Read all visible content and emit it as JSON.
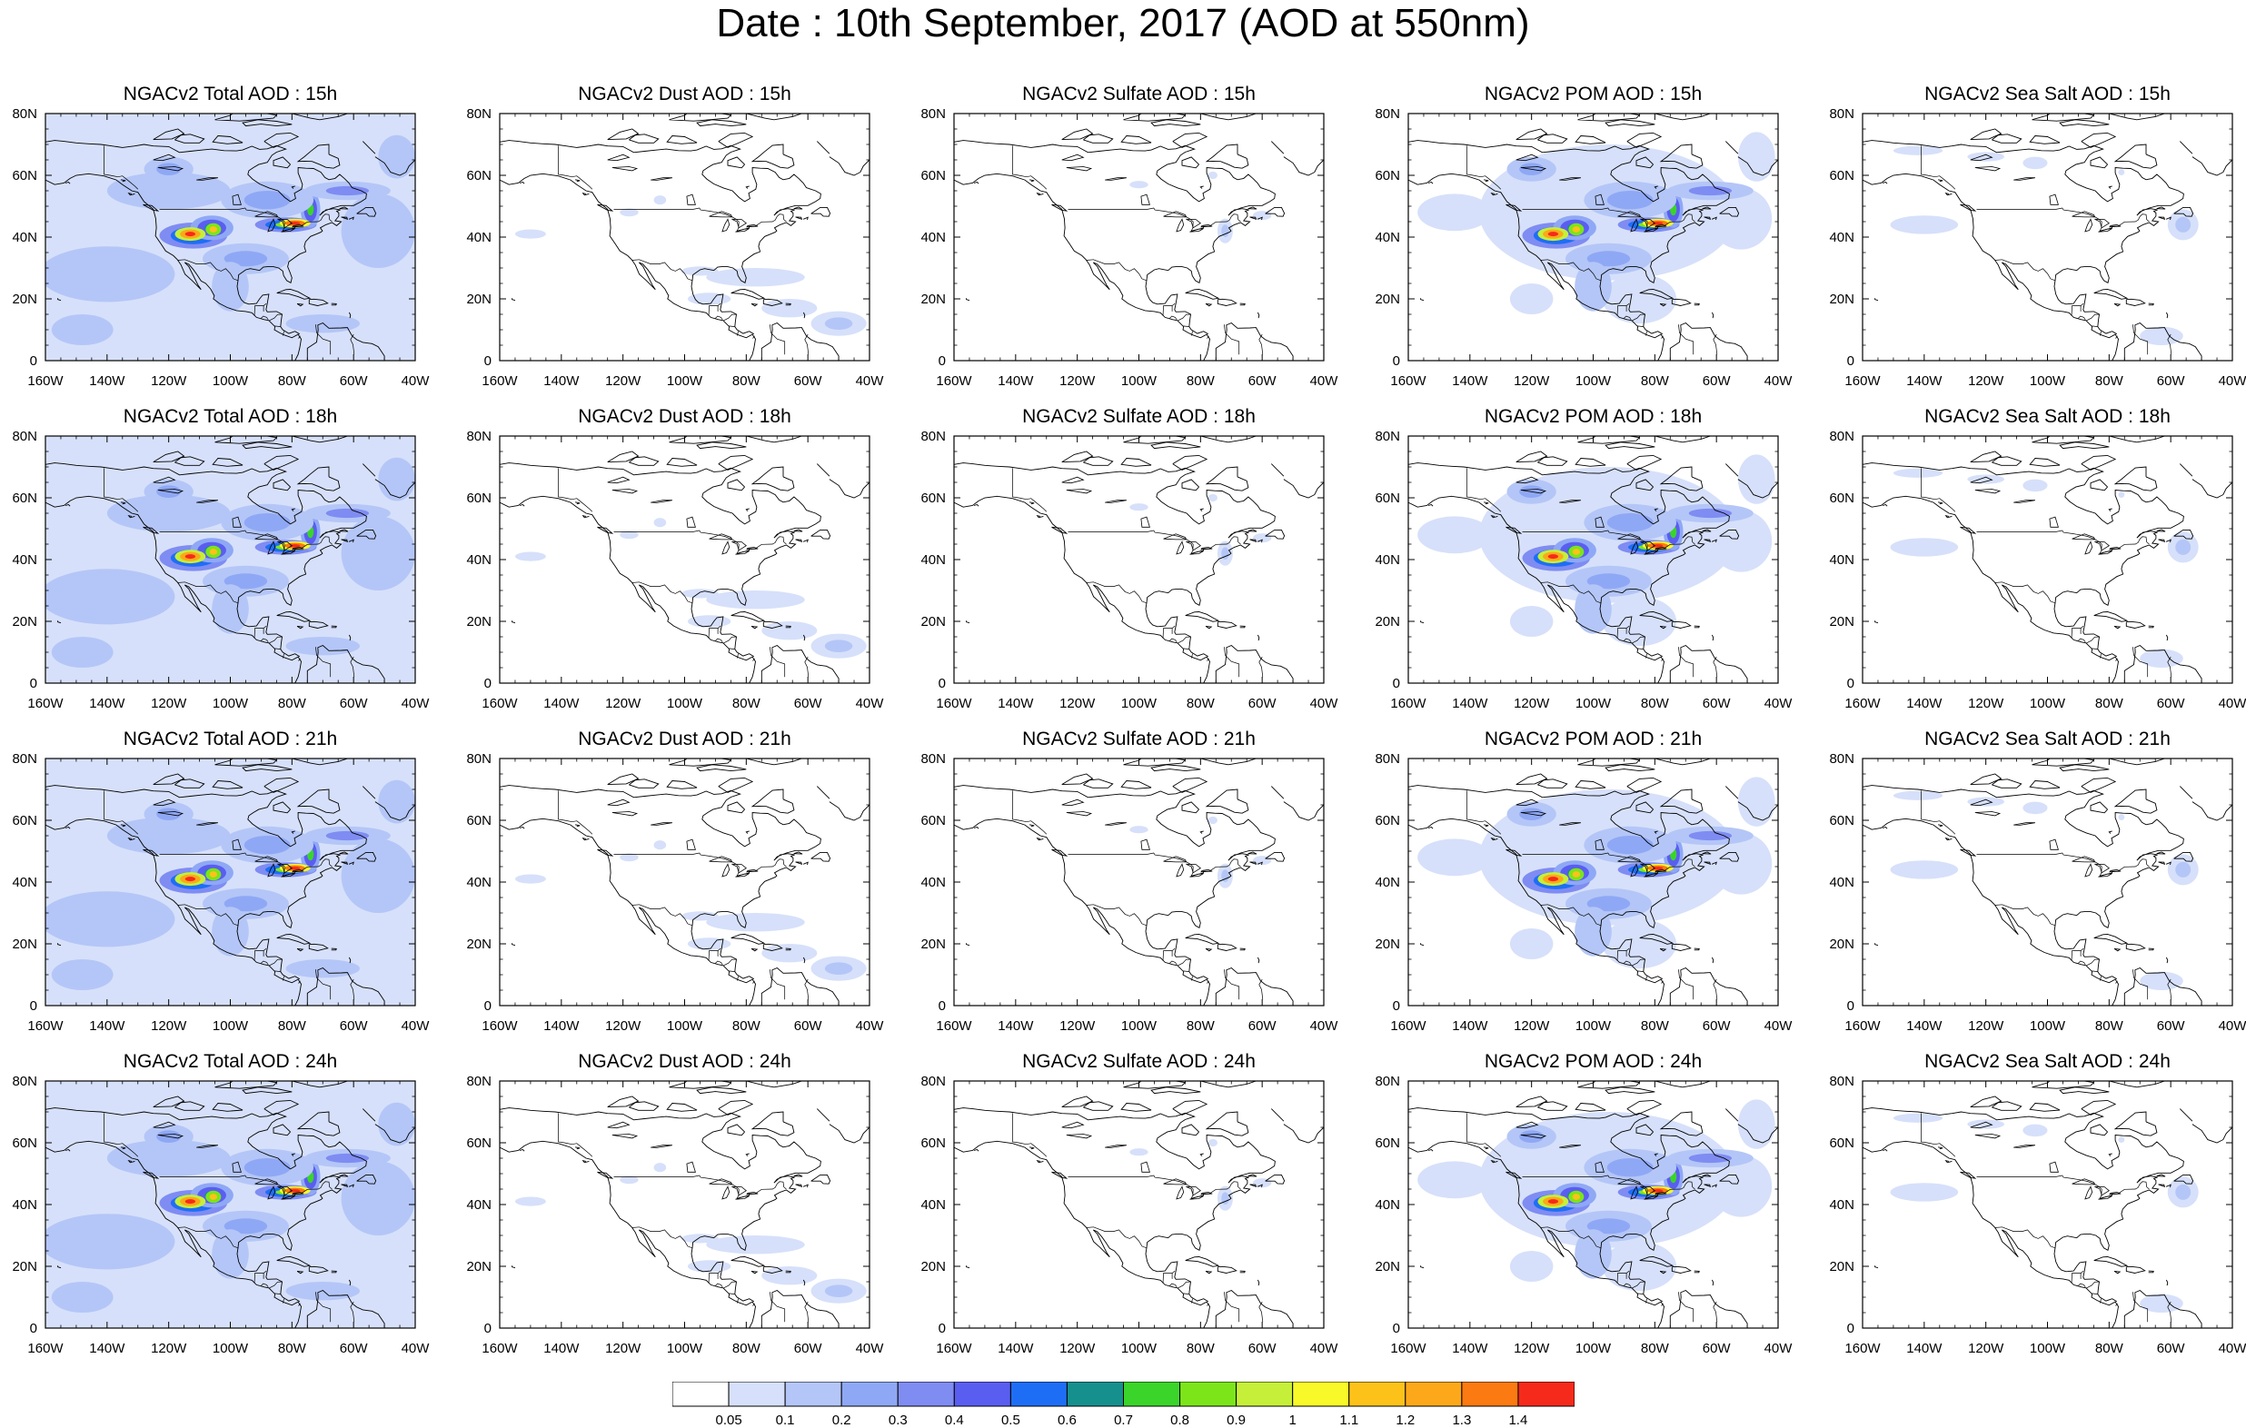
{
  "title": "Date : 10th September, 2017 (AOD at 550nm)",
  "axes": {
    "lon_ticks": [
      "160W",
      "140W",
      "120W",
      "100W",
      "80W",
      "60W",
      "40W"
    ],
    "lat_ticks": [
      "0",
      "20N",
      "40N",
      "60N",
      "80N"
    ],
    "lon_range": [
      -160,
      -40
    ],
    "lat_range": [
      0,
      80
    ]
  },
  "colorbar": {
    "labels": [
      "0.05",
      "0.1",
      "0.2",
      "0.3",
      "0.4",
      "0.5",
      "0.6",
      "0.7",
      "0.8",
      "0.9",
      "1",
      "1.1",
      "1.2",
      "1.3",
      "1.4"
    ],
    "colors": [
      "#ffffff",
      "#d6e0fa",
      "#b4c6f7",
      "#8fa8f5",
      "#7f8cf2",
      "#5a5ef0",
      "#1e6ef5",
      "#15908c",
      "#3bd42a",
      "#7be51a",
      "#c6ef3a",
      "#f9f92a",
      "#fcc21a",
      "#fca81a",
      "#fc7a12",
      "#f52a1a"
    ]
  },
  "land_color": "#ffffff",
  "coast_color": "#000000",
  "rows": [
    {
      "hour": "15h",
      "panels": [
        {
          "title": "NGACv2 Total AOD : 15h",
          "product": "total"
        },
        {
          "title": "NGACv2 Dust AOD : 15h",
          "product": "dust"
        },
        {
          "title": "NGACv2 Sulfate AOD : 15h",
          "product": "sulfate"
        },
        {
          "title": "NGACv2 POM AOD : 15h",
          "product": "pom"
        },
        {
          "title": "NGACv2 Sea Salt AOD : 15h",
          "product": "seasalt"
        }
      ]
    },
    {
      "hour": "18h",
      "panels": [
        {
          "title": "NGACv2 Total AOD : 18h",
          "product": "total"
        },
        {
          "title": "NGACv2 Dust AOD : 18h",
          "product": "dust"
        },
        {
          "title": "NGACv2 Sulfate AOD : 18h",
          "product": "sulfate"
        },
        {
          "title": "NGACv2 POM AOD : 18h",
          "product": "pom"
        },
        {
          "title": "NGACv2 Sea Salt AOD : 18h",
          "product": "seasalt"
        }
      ]
    },
    {
      "hour": "21h",
      "panels": [
        {
          "title": "NGACv2 Total AOD : 21h",
          "product": "total"
        },
        {
          "title": "NGACv2 Dust AOD : 21h",
          "product": "dust"
        },
        {
          "title": "NGACv2 Sulfate AOD : 21h",
          "product": "sulfate"
        },
        {
          "title": "NGACv2 POM AOD : 21h",
          "product": "pom"
        },
        {
          "title": "NGACv2 Sea Salt AOD : 21h",
          "product": "seasalt"
        }
      ]
    },
    {
      "hour": "24h",
      "panels": [
        {
          "title": "NGACv2 Total AOD : 24h",
          "product": "total"
        },
        {
          "title": "NGACv2 Dust AOD : 24h",
          "product": "dust"
        },
        {
          "title": "NGACv2 Sulfate AOD : 24h",
          "product": "sulfate"
        },
        {
          "title": "NGACv2 POM AOD : 24h",
          "product": "pom"
        },
        {
          "title": "NGACv2 Sea Salt  AOD : 24h",
          "product": "seasalt"
        }
      ]
    }
  ]
}
